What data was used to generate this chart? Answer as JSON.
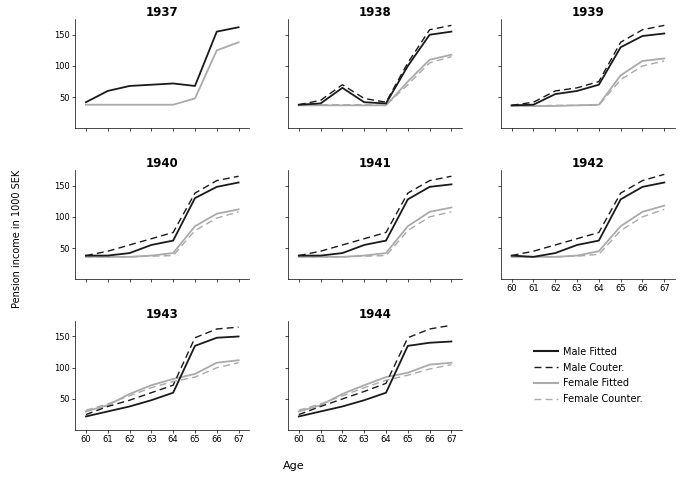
{
  "years": [
    "1937",
    "1938",
    "1939",
    "1940",
    "1941",
    "1942",
    "1943",
    "1944"
  ],
  "ages": [
    60,
    61,
    62,
    63,
    64,
    65,
    66,
    67
  ],
  "ylabel": "Pension income in 1000 SEK",
  "xlabel": "Age",
  "ylim": [
    0,
    175
  ],
  "yticks": [
    50,
    100,
    150
  ],
  "series": {
    "1937": {
      "male_fitted": [
        42,
        60,
        68,
        70,
        72,
        68,
        155,
        162
      ],
      "male_counter": null,
      "female_fitted": [
        38,
        38,
        38,
        38,
        38,
        48,
        125,
        138
      ],
      "female_counter": null
    },
    "1938": {
      "male_fitted": [
        38,
        40,
        65,
        42,
        40,
        100,
        150,
        155
      ],
      "male_counter": [
        38,
        45,
        70,
        48,
        42,
        105,
        158,
        165
      ],
      "female_fitted": [
        37,
        37,
        37,
        37,
        37,
        75,
        110,
        118
      ],
      "female_counter": [
        37,
        38,
        38,
        38,
        37,
        70,
        105,
        115
      ]
    },
    "1939": {
      "male_fitted": [
        37,
        38,
        55,
        60,
        70,
        130,
        148,
        152
      ],
      "male_counter": [
        37,
        42,
        60,
        65,
        75,
        138,
        158,
        165
      ],
      "female_fitted": [
        36,
        36,
        36,
        37,
        38,
        85,
        108,
        112
      ],
      "female_counter": [
        36,
        36,
        37,
        37,
        37,
        78,
        100,
        108
      ]
    },
    "1940": {
      "male_fitted": [
        38,
        38,
        42,
        55,
        62,
        130,
        148,
        155
      ],
      "male_counter": [
        38,
        45,
        55,
        65,
        75,
        138,
        158,
        165
      ],
      "female_fitted": [
        36,
        36,
        36,
        38,
        42,
        85,
        105,
        112
      ],
      "female_counter": [
        36,
        36,
        36,
        37,
        38,
        78,
        98,
        108
      ]
    },
    "1941": {
      "male_fitted": [
        38,
        38,
        42,
        55,
        62,
        128,
        148,
        152
      ],
      "male_counter": [
        38,
        45,
        55,
        65,
        75,
        138,
        158,
        165
      ],
      "female_fitted": [
        36,
        36,
        36,
        38,
        42,
        85,
        108,
        115
      ],
      "female_counter": [
        36,
        36,
        36,
        37,
        38,
        78,
        100,
        108
      ]
    },
    "1942": {
      "male_fitted": [
        38,
        36,
        42,
        55,
        62,
        128,
        148,
        155
      ],
      "male_counter": [
        38,
        45,
        55,
        65,
        75,
        138,
        158,
        168
      ],
      "female_fitted": [
        36,
        36,
        36,
        38,
        45,
        85,
        108,
        118
      ],
      "female_counter": [
        36,
        36,
        36,
        37,
        40,
        78,
        100,
        112
      ]
    },
    "1943": {
      "male_fitted": [
        22,
        30,
        38,
        48,
        60,
        135,
        148,
        150
      ],
      "male_counter": [
        25,
        38,
        48,
        60,
        72,
        148,
        162,
        165
      ],
      "female_fitted": [
        30,
        40,
        58,
        72,
        82,
        90,
        108,
        112
      ],
      "female_counter": [
        32,
        42,
        55,
        68,
        78,
        85,
        100,
        108
      ]
    },
    "1944": {
      "male_fitted": [
        22,
        30,
        38,
        48,
        60,
        135,
        140,
        142
      ],
      "male_counter": [
        25,
        38,
        50,
        62,
        75,
        148,
        162,
        168
      ],
      "female_fitted": [
        30,
        40,
        58,
        72,
        85,
        92,
        105,
        108
      ],
      "female_counter": [
        32,
        42,
        55,
        68,
        80,
        88,
        98,
        105
      ]
    }
  },
  "colors": {
    "male_fitted": "#1a1a1a",
    "male_counter": "#1a1a1a",
    "female_fitted": "#aaaaaa",
    "female_counter": "#aaaaaa"
  },
  "legend_labels": [
    "Male Fitted",
    "Male Couter.",
    "Female Fitted",
    "Female Counter."
  ],
  "lw_solid": 1.3,
  "lw_dash": 1.0
}
